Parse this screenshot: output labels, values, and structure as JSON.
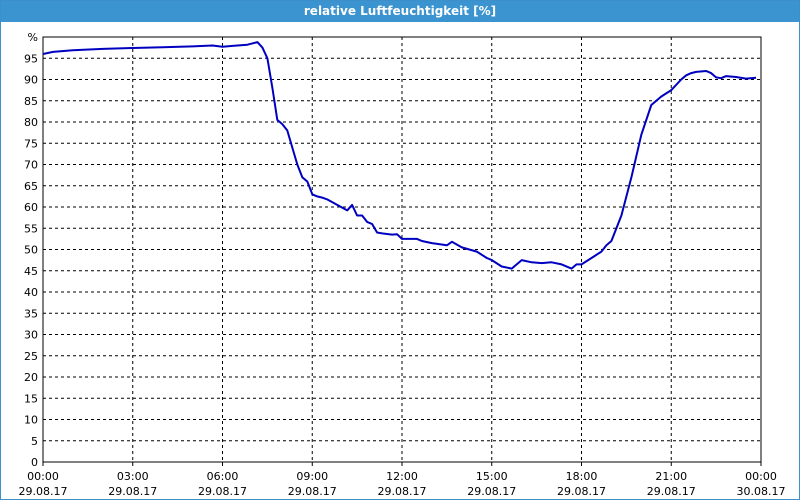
{
  "window": {
    "title": "relative Luftfeuchtigkeit [%]"
  },
  "colors": {
    "titlebar": "#3b93cf",
    "series": "#0000c0",
    "grid": "#000000"
  },
  "chart_data": {
    "type": "line",
    "title": "relative Luftfeuchtigkeit [%]",
    "ylabel": "%",
    "xlabel": "",
    "ylim": [
      0,
      100
    ],
    "xlim": [
      "29.08.17 00:00",
      "30.08.17 00:00"
    ],
    "grid": true,
    "y_ticks": [
      0,
      5,
      10,
      15,
      20,
      25,
      30,
      35,
      40,
      45,
      50,
      55,
      60,
      65,
      70,
      75,
      80,
      85,
      90,
      95
    ],
    "x_ticks": [
      {
        "time": "00:00",
        "date": "29.08.17"
      },
      {
        "time": "03:00",
        "date": "29.08.17"
      },
      {
        "time": "06:00",
        "date": "29.08.17"
      },
      {
        "time": "09:00",
        "date": "29.08.17"
      },
      {
        "time": "12:00",
        "date": "29.08.17"
      },
      {
        "time": "15:00",
        "date": "29.08.17"
      },
      {
        "time": "18:00",
        "date": "29.08.17"
      },
      {
        "time": "21:00",
        "date": "29.08.17"
      },
      {
        "time": "00:00",
        "date": "30.08.17"
      }
    ],
    "series": [
      {
        "x": [
          "00:00",
          "00:20",
          "01:00",
          "02:00",
          "03:00",
          "04:00",
          "05:00",
          "05:40",
          "06:00",
          "06:20",
          "06:50",
          "07:10",
          "07:20",
          "07:30",
          "07:40",
          "07:50",
          "08:00",
          "08:10",
          "08:30",
          "08:40",
          "08:50",
          "09:00",
          "09:10",
          "09:20",
          "09:30",
          "09:50",
          "10:10",
          "10:20",
          "10:30",
          "10:40",
          "10:50",
          "11:00",
          "11:10",
          "11:20",
          "11:40",
          "11:50",
          "12:00",
          "12:30",
          "12:40",
          "13:00",
          "13:30",
          "13:40",
          "14:00",
          "14:30",
          "14:50",
          "15:00",
          "15:20",
          "15:40",
          "15:50",
          "16:00",
          "16:20",
          "16:40",
          "17:00",
          "17:20",
          "17:40",
          "17:50",
          "18:00",
          "18:20",
          "18:40",
          "18:50",
          "19:00",
          "19:20",
          "19:40",
          "20:00",
          "20:20",
          "20:40",
          "21:00",
          "21:20",
          "21:30",
          "21:40",
          "21:50",
          "22:10",
          "22:20",
          "22:30",
          "22:40",
          "22:50",
          "23:10",
          "23:30",
          "23:50"
        ],
        "y": [
          96.0,
          96.5,
          96.9,
          97.2,
          97.4,
          97.6,
          97.8,
          98.0,
          97.7,
          97.9,
          98.2,
          98.8,
          97.5,
          95.0,
          88.0,
          80.5,
          79.5,
          78.0,
          70.0,
          67.0,
          66.0,
          63.0,
          62.5,
          62.2,
          61.8,
          60.5,
          59.2,
          60.5,
          58.0,
          58.0,
          56.5,
          56.0,
          54.0,
          53.8,
          53.5,
          53.6,
          52.5,
          52.5,
          52.0,
          51.5,
          51.0,
          51.8,
          50.5,
          49.5,
          48.0,
          47.5,
          46.0,
          45.5,
          46.5,
          47.5,
          47.0,
          46.8,
          47.0,
          46.5,
          45.5,
          46.5,
          46.5,
          48.0,
          49.5,
          51.0,
          52.0,
          58.0,
          67.0,
          77.0,
          84.0,
          86.0,
          87.5,
          90.0,
          91.0,
          91.5,
          91.8,
          92.0,
          91.5,
          90.5,
          90.3,
          90.8,
          90.6,
          90.2,
          90.4
        ]
      }
    ]
  }
}
